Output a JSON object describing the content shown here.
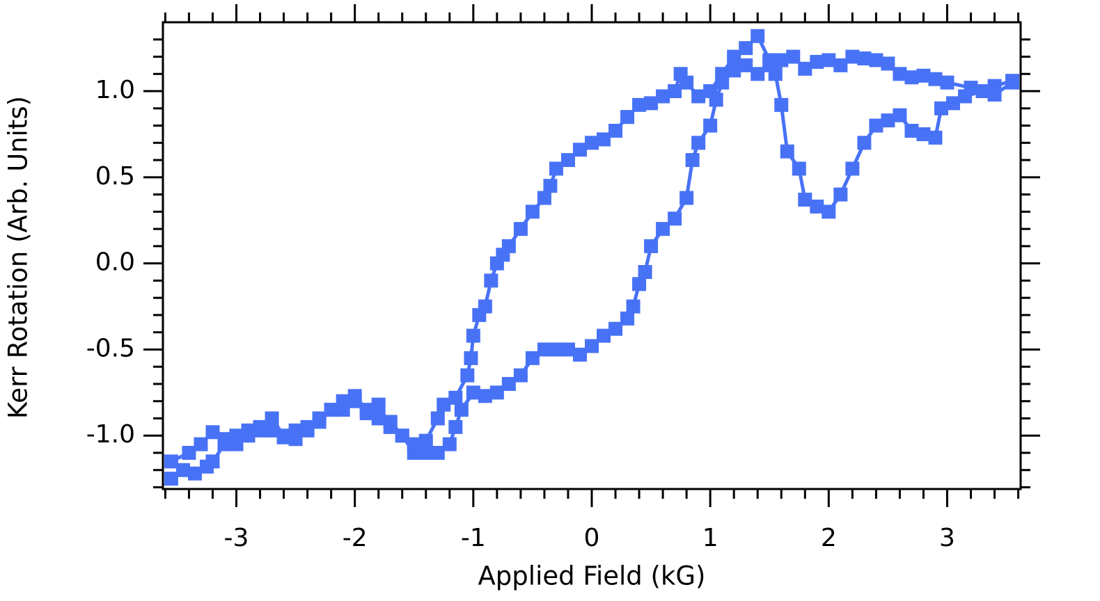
{
  "chart_data": {
    "type": "line",
    "xlabel": "Applied Field (kG)",
    "ylabel": "Kerr Rotation (Arb. Units)",
    "xlim": [
      -3.62,
      3.62
    ],
    "ylim": [
      -1.31,
      1.4
    ],
    "xticks": [
      -3,
      -2,
      -1,
      0,
      1,
      2,
      3
    ],
    "yticks": [
      {
        "value": -1,
        "label": "-1.0"
      },
      {
        "value": -0.5,
        "label": "-0.5"
      },
      {
        "value": 0,
        "label": "0.0"
      },
      {
        "value": 0.5,
        "label": "0.5"
      },
      {
        "value": 1,
        "label": "1.0"
      }
    ],
    "xminorticks": [
      -3.6,
      -3.4,
      -3.2,
      -2.8,
      -2.6,
      -2.4,
      -2.2,
      -1.8,
      -1.6,
      -1.4,
      -1.2,
      -0.8,
      -0.6,
      -0.4,
      -0.2,
      0.2,
      0.4,
      0.6,
      0.8,
      1.2,
      1.4,
      1.6,
      1.8,
      2.2,
      2.4,
      2.6,
      2.8,
      3.2,
      3.4,
      3.6
    ],
    "yminorticks": [
      -1.3,
      -1.2,
      -1.1,
      -0.9,
      -0.8,
      -0.7,
      -0.6,
      -0.4,
      -0.3,
      -0.2,
      -0.1,
      0.1,
      0.2,
      0.3,
      0.4,
      0.6,
      0.7,
      0.8,
      0.9,
      1.1,
      1.2,
      1.3
    ],
    "series": [
      {
        "color": "#4872f6",
        "x": [
          3.55,
          3.4,
          3.2,
          3.0,
          2.9,
          2.8,
          2.7,
          2.6,
          2.5,
          2.4,
          2.3,
          2.2,
          2.1,
          2.0,
          1.9,
          1.8,
          1.7,
          1.6,
          1.5,
          1.4,
          1.3,
          1.2,
          1.1,
          1.0,
          0.9,
          0.8,
          0.75,
          0.7,
          0.6,
          0.5,
          0.4,
          0.3,
          0.2,
          0.1,
          0.0,
          -0.1,
          -0.2,
          -0.3,
          -0.35,
          -0.4,
          -0.5,
          -0.6,
          -0.7,
          -0.75,
          -0.8,
          -0.85,
          -0.9,
          -0.95,
          -1.0,
          -1.02,
          -1.05,
          -1.15,
          -1.25,
          -1.3,
          -1.4,
          -1.5,
          -1.6,
          -1.7,
          -1.8,
          -1.9,
          -2.0,
          -2.1,
          -2.2,
          -2.3,
          -2.4,
          -2.5,
          -2.6,
          -2.7,
          -2.8,
          -2.9,
          -3.0,
          -3.1,
          -3.2,
          -3.3,
          -3.4,
          -3.55
        ],
        "values": [
          1.06,
          1.03,
          1.02,
          1.05,
          1.07,
          1.09,
          1.08,
          1.1,
          1.16,
          1.18,
          1.19,
          1.2,
          1.15,
          1.18,
          1.17,
          1.13,
          1.2,
          1.18,
          1.18,
          1.32,
          1.25,
          1.2,
          1.1,
          1.0,
          0.97,
          1.05,
          1.1,
          1.0,
          0.97,
          0.93,
          0.92,
          0.85,
          0.77,
          0.72,
          0.7,
          0.66,
          0.6,
          0.55,
          0.45,
          0.38,
          0.3,
          0.2,
          0.1,
          0.05,
          0.0,
          -0.1,
          -0.25,
          -0.3,
          -0.42,
          -0.55,
          -0.65,
          -0.78,
          -0.82,
          -0.9,
          -1.03,
          -1.1,
          -1.0,
          -0.95,
          -0.82,
          -0.85,
          -0.77,
          -0.8,
          -0.85,
          -0.9,
          -0.97,
          -1.02,
          -1.01,
          -0.97,
          -0.95,
          -0.97,
          -1.0,
          -1.02,
          -0.98,
          -1.05,
          -1.1,
          -1.15
        ]
      },
      {
        "color": "#4872f6",
        "x": [
          -3.55,
          -3.45,
          -3.35,
          -3.25,
          -3.2,
          -3.1,
          -3.0,
          -2.9,
          -2.8,
          -2.7,
          -2.6,
          -2.5,
          -2.4,
          -2.3,
          -2.2,
          -2.1,
          -2.0,
          -1.9,
          -1.8,
          -1.7,
          -1.6,
          -1.5,
          -1.4,
          -1.3,
          -1.2,
          -1.15,
          -1.1,
          -1.0,
          -0.9,
          -0.8,
          -0.7,
          -0.6,
          -0.5,
          -0.4,
          -0.3,
          -0.2,
          -0.1,
          0.0,
          0.1,
          0.2,
          0.3,
          0.35,
          0.4,
          0.45,
          0.5,
          0.6,
          0.7,
          0.8,
          0.85,
          0.9,
          1.0,
          1.05,
          1.1,
          1.2,
          1.3,
          1.4,
          1.5,
          1.55,
          1.6,
          1.65,
          1.75,
          1.8,
          1.9,
          2.0,
          2.1,
          2.2,
          2.3,
          2.4,
          2.5,
          2.6,
          2.7,
          2.8,
          2.9,
          2.95,
          3.05,
          3.15,
          3.3,
          3.4,
          3.55
        ],
        "values": [
          -1.25,
          -1.2,
          -1.22,
          -1.18,
          -1.15,
          -1.05,
          -1.05,
          -1.0,
          -0.97,
          -0.9,
          -1.0,
          -0.97,
          -0.95,
          -0.92,
          -0.85,
          -0.85,
          -0.8,
          -0.87,
          -0.9,
          -0.92,
          -1.0,
          -1.05,
          -1.1,
          -1.1,
          -1.05,
          -0.95,
          -0.85,
          -0.75,
          -0.77,
          -0.75,
          -0.7,
          -0.65,
          -0.55,
          -0.5,
          -0.5,
          -0.5,
          -0.53,
          -0.48,
          -0.42,
          -0.38,
          -0.32,
          -0.25,
          -0.12,
          -0.05,
          0.1,
          0.2,
          0.26,
          0.38,
          0.6,
          0.7,
          0.8,
          0.95,
          1.05,
          1.12,
          1.15,
          1.1,
          1.15,
          1.1,
          0.92,
          0.65,
          0.55,
          0.37,
          0.33,
          0.3,
          0.4,
          0.55,
          0.7,
          0.8,
          0.83,
          0.86,
          0.77,
          0.75,
          0.73,
          0.9,
          0.93,
          0.97,
          1.0,
          0.98,
          1.05
        ]
      }
    ]
  }
}
